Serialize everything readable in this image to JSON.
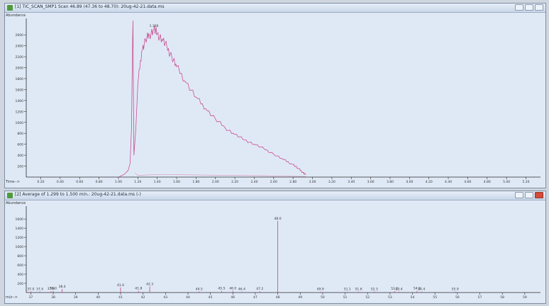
{
  "windows": {
    "tic": {
      "title": "[1] TIC_SCAN_SMP1 Scan 46.89 (47.36 to 48.70): 20ug-42-21.data.ms"
    },
    "ms": {
      "title": "[2] Average of 1.299 to 1.500 min.: 20ug-42-21.data.ms (-)"
    }
  },
  "chart_data": [
    {
      "type": "line",
      "ylabel": "Abundance",
      "xlabel": "Time-->",
      "xlim": [
        0.05,
        5.35
      ],
      "ylim": [
        0,
        2900
      ],
      "xticks": [
        0.2,
        0.4,
        0.6,
        0.8,
        1.0,
        1.2,
        1.4,
        1.6,
        1.8,
        2.0,
        2.2,
        2.4,
        2.6,
        2.8,
        3.0,
        3.2,
        3.4,
        3.6,
        3.8,
        4.0,
        4.2,
        4.4,
        4.6,
        4.8,
        5.0,
        5.2
      ],
      "yticks": [
        200,
        400,
        600,
        800,
        1000,
        1200,
        1400,
        1600,
        1800,
        2000,
        2200,
        2400,
        2600
      ],
      "peak_label": "1.366",
      "peak_label_x": 1.366,
      "peak_label_y": 2720,
      "series": [
        {
          "color": "#c94f93",
          "points": [
            [
              1.0,
              0
            ],
            [
              1.06,
              50
            ],
            [
              1.1,
              120
            ],
            [
              1.12,
              250
            ],
            [
              1.135,
              900
            ],
            [
              1.145,
              2400
            ],
            [
              1.15,
              2860
            ],
            [
              1.155,
              1400
            ],
            [
              1.16,
              400
            ],
            [
              1.18,
              900
            ],
            [
              1.2,
              1700
            ],
            [
              1.24,
              2300
            ],
            [
              1.28,
              2500
            ],
            [
              1.32,
              2600
            ],
            [
              1.366,
              2700
            ],
            [
              1.4,
              2620
            ],
            [
              1.45,
              2520
            ],
            [
              1.5,
              2380
            ],
            [
              1.55,
              2200
            ],
            [
              1.6,
              2020
            ],
            [
              1.7,
              1720
            ],
            [
              1.8,
              1460
            ],
            [
              1.9,
              1250
            ],
            [
              2.0,
              1060
            ],
            [
              2.1,
              900
            ],
            [
              2.2,
              780
            ],
            [
              2.3,
              680
            ],
            [
              2.4,
              600
            ],
            [
              2.5,
              520
            ],
            [
              2.6,
              420
            ],
            [
              2.7,
              320
            ],
            [
              2.8,
              230
            ],
            [
              2.85,
              160
            ],
            [
              2.9,
              90
            ],
            [
              2.93,
              40
            ]
          ]
        },
        {
          "color": "#d98fb8",
          "points": [
            [
              1.17,
              80
            ],
            [
              1.2,
              30
            ],
            [
              1.3,
              40
            ],
            [
              1.5,
              45
            ],
            [
              2.0,
              35
            ],
            [
              2.5,
              25
            ],
            [
              2.93,
              10
            ]
          ]
        }
      ]
    },
    {
      "type": "bar",
      "ylabel": "Abundance",
      "xlabel": "m/z-->",
      "xlim": [
        36.8,
        59.7
      ],
      "ylim": [
        0,
        1880
      ],
      "xticks": [
        37,
        38,
        39,
        40,
        41,
        42,
        43,
        44,
        45,
        46,
        47,
        48,
        49,
        50,
        51,
        52,
        53,
        54,
        55,
        56,
        57,
        58,
        59
      ],
      "yticks": [
        200,
        400,
        600,
        800,
        1000,
        1200,
        1400,
        1600
      ],
      "peaks": [
        {
          "mz": 37.0,
          "abundance": 25,
          "label": "37.0"
        },
        {
          "mz": 37.4,
          "abundance": 25,
          "label": "37.4"
        },
        {
          "mz": 37.9,
          "abundance": 30,
          "label": "37.9"
        },
        {
          "mz": 38.0,
          "abundance": 35,
          "label": "38.0"
        },
        {
          "mz": 38.4,
          "abundance": 80,
          "label": "38.4"
        },
        {
          "mz": 41.0,
          "abundance": 110,
          "label": "41.0"
        },
        {
          "mz": 41.8,
          "abundance": 35,
          "label": "41.8"
        },
        {
          "mz": 42.3,
          "abundance": 130,
          "label": "42.3"
        },
        {
          "mz": 44.5,
          "abundance": 25,
          "label": "44.5"
        },
        {
          "mz": 45.5,
          "abundance": 35,
          "label": "45.5"
        },
        {
          "mz": 46.0,
          "abundance": 40,
          "label": "46.0"
        },
        {
          "mz": 46.4,
          "abundance": 20,
          "label": "46.4"
        },
        {
          "mz": 47.2,
          "abundance": 30,
          "label": "47.2"
        },
        {
          "mz": 48.0,
          "abundance": 1560,
          "label": "48.0"
        },
        {
          "mz": 49.9,
          "abundance": 20,
          "label": "49.9"
        },
        {
          "mz": 51.1,
          "abundance": 20,
          "label": "51.1"
        },
        {
          "mz": 51.6,
          "abundance": 20,
          "label": "51.6"
        },
        {
          "mz": 52.3,
          "abundance": 25,
          "label": "52.3"
        },
        {
          "mz": 53.2,
          "abundance": 30,
          "label": "53.2"
        },
        {
          "mz": 53.4,
          "abundance": 20,
          "label": "53.4"
        },
        {
          "mz": 54.2,
          "abundance": 35,
          "label": "54.2"
        },
        {
          "mz": 54.4,
          "abundance": 20,
          "label": "54.4"
        },
        {
          "mz": 55.9,
          "abundance": 20,
          "label": "55.9"
        }
      ],
      "color": "#c94f93"
    }
  ]
}
